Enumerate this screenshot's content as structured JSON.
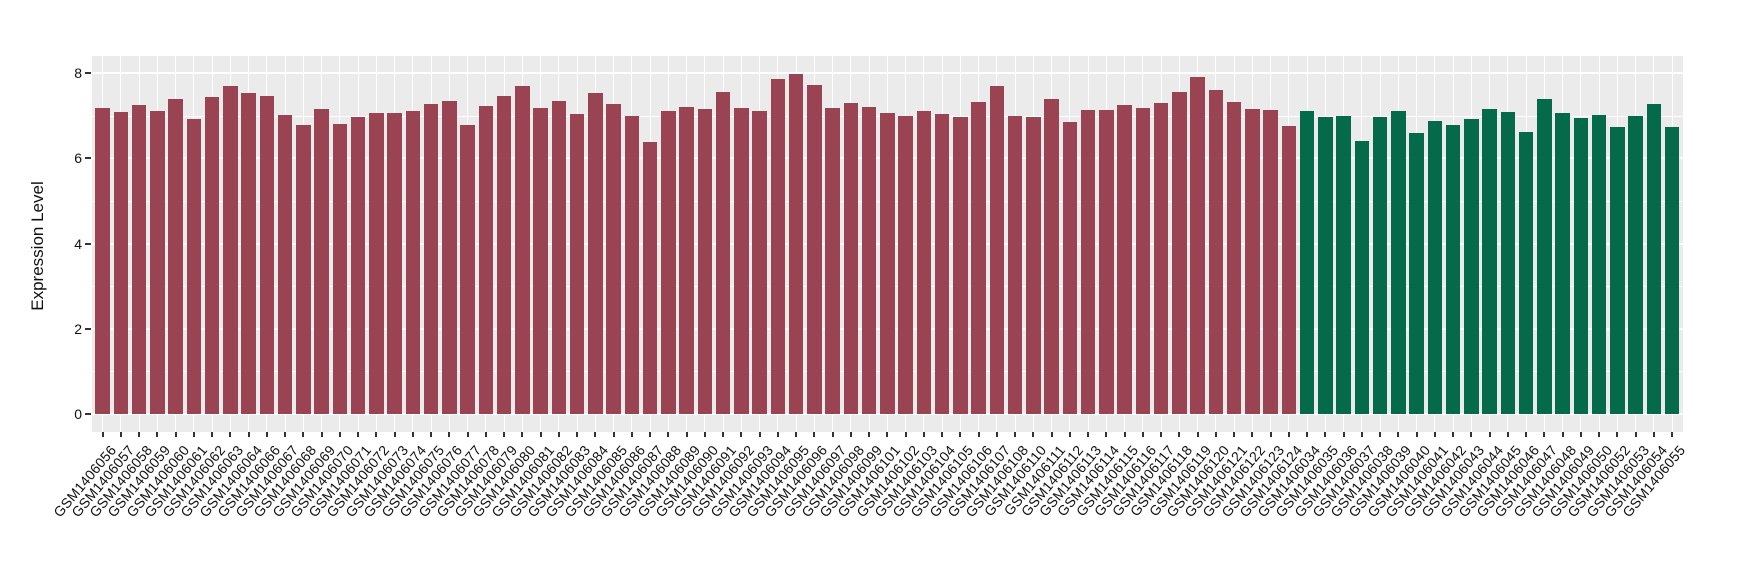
{
  "chart_data": {
    "type": "bar",
    "title": "",
    "xlabel": "",
    "ylabel": "Expression Level",
    "ylim": [
      0,
      8.42
    ],
    "yticks": [
      0,
      2,
      4,
      6,
      8
    ],
    "yticks_minor": [
      1,
      3,
      5,
      7
    ],
    "grid": true,
    "legend": false,
    "panel_background": "#EBEBEB",
    "gridline_color": "#FFFFFF",
    "tick_color": "#333333",
    "series": [
      {
        "name": "red-group",
        "color": "#9A4353",
        "categories": [
          "GSM1406056",
          "GSM1406057",
          "GSM1406058",
          "GSM1406059",
          "GSM1406060",
          "GSM1406061",
          "GSM1406062",
          "GSM1406063",
          "GSM1406064",
          "GSM1406066",
          "GSM1406067",
          "GSM1406068",
          "GSM1406069",
          "GSM1406070",
          "GSM1406071",
          "GSM1406072",
          "GSM1406073",
          "GSM1406074",
          "GSM1406075",
          "GSM1406076",
          "GSM1406077",
          "GSM1406078",
          "GSM1406079",
          "GSM1406080",
          "GSM1406081",
          "GSM1406082",
          "GSM1406083",
          "GSM1406084",
          "GSM1406085",
          "GSM1406086",
          "GSM1406087",
          "GSM1406088",
          "GSM1406089",
          "GSM1406090",
          "GSM1406091",
          "GSM1406092",
          "GSM1406093",
          "GSM1406094",
          "GSM1406095",
          "GSM1406096",
          "GSM1406097",
          "GSM1406098",
          "GSM1406099",
          "GSM1406101",
          "GSM1406102",
          "GSM1406103",
          "GSM1406104",
          "GSM1406105",
          "GSM1406106",
          "GSM1406107",
          "GSM1406108",
          "GSM1406110",
          "GSM1406111",
          "GSM1406112",
          "GSM1406113",
          "GSM1406114",
          "GSM1406115",
          "GSM1406116",
          "GSM1406117",
          "GSM1406118",
          "GSM1406119",
          "GSM1406120",
          "GSM1406121",
          "GSM1406122",
          "GSM1406123",
          "GSM1406124"
        ],
        "values": [
          7.17,
          7.09,
          7.25,
          7.12,
          7.38,
          6.91,
          7.44,
          7.7,
          7.52,
          7.45,
          7.01,
          6.78,
          7.16,
          6.81,
          6.96,
          7.06,
          7.06,
          7.11,
          7.28,
          7.35,
          6.78,
          7.23,
          7.46,
          7.7,
          7.19,
          7.35,
          7.03,
          7.53,
          7.27,
          7.0,
          6.38,
          7.11,
          7.21,
          7.15,
          7.55,
          7.17,
          7.11,
          7.85,
          7.98,
          7.72,
          7.17,
          7.3,
          7.2,
          7.05,
          7.0,
          7.11,
          7.03,
          6.97,
          7.32,
          7.7,
          7.0,
          6.97,
          7.4,
          6.86,
          7.13,
          7.13,
          7.25,
          7.18,
          7.3,
          7.56,
          7.9,
          7.61,
          7.31,
          7.16,
          7.13,
          6.76
        ]
      },
      {
        "name": "green-group",
        "color": "#056A4A",
        "categories": [
          "GSM1406034",
          "GSM1406035",
          "GSM1406036",
          "GSM1406037",
          "GSM1406038",
          "GSM1406039",
          "GSM1406040",
          "GSM1406041",
          "GSM1406042",
          "GSM1406043",
          "GSM1406044",
          "GSM1406045",
          "GSM1406046",
          "GSM1406047",
          "GSM1406048",
          "GSM1406049",
          "GSM1406050",
          "GSM1406052",
          "GSM1406053",
          "GSM1406054",
          "GSM1406055"
        ],
        "values": [
          7.1,
          6.96,
          7.0,
          6.41,
          6.96,
          7.12,
          6.59,
          6.87,
          6.78,
          6.91,
          7.15,
          7.09,
          6.61,
          7.4,
          7.06,
          6.95,
          7.02,
          6.73,
          6.99,
          7.28,
          6.74
        ]
      }
    ]
  }
}
